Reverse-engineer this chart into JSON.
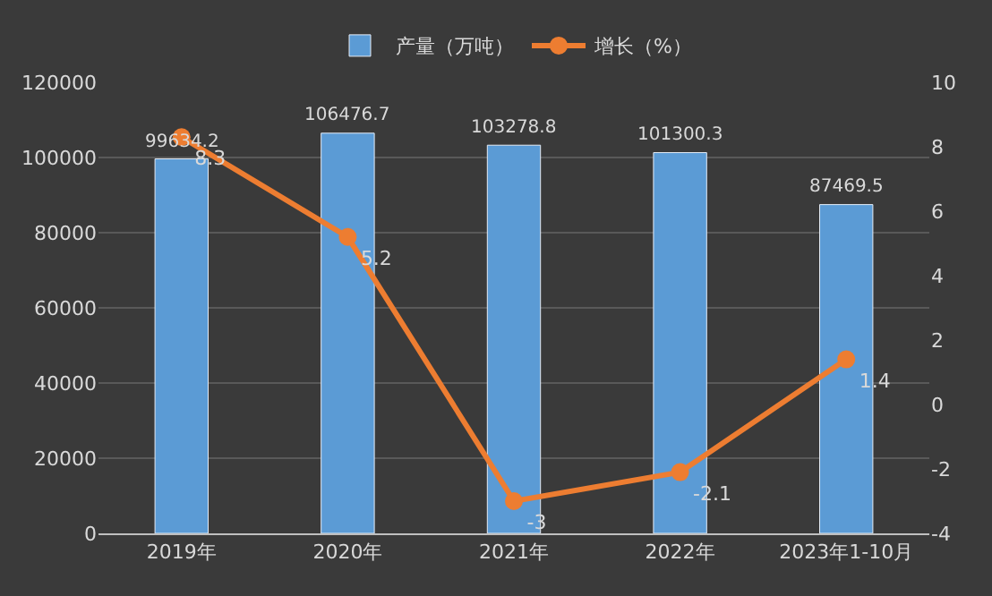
{
  "chart_data": {
    "type": "bar",
    "categories": [
      "2019年",
      "2020年",
      "2021年",
      "2022年",
      "2023年1-10月"
    ],
    "series": [
      {
        "name": "产量（万吨）",
        "color": "#5b9bd5",
        "values": [
          99634.2,
          106476.7,
          103278.8,
          101300.3,
          87469.5
        ]
      },
      {
        "name": "增长（%）",
        "type": "line",
        "axis": "y2",
        "color": "#ed7d31",
        "values": [
          8.3,
          5.2,
          -3,
          -2.1,
          1.4
        ]
      }
    ],
    "data_labels": true,
    "ylim": [
      0,
      120000
    ],
    "yticks": [
      0,
      20000,
      40000,
      60000,
      80000,
      100000,
      120000
    ],
    "y2lim": [
      -4,
      10
    ],
    "y2ticks": [
      -4,
      -2,
      0,
      2,
      4,
      6,
      8,
      10
    ],
    "grid": "y",
    "legend": "top",
    "marker": "circle",
    "line_style": "solid"
  }
}
